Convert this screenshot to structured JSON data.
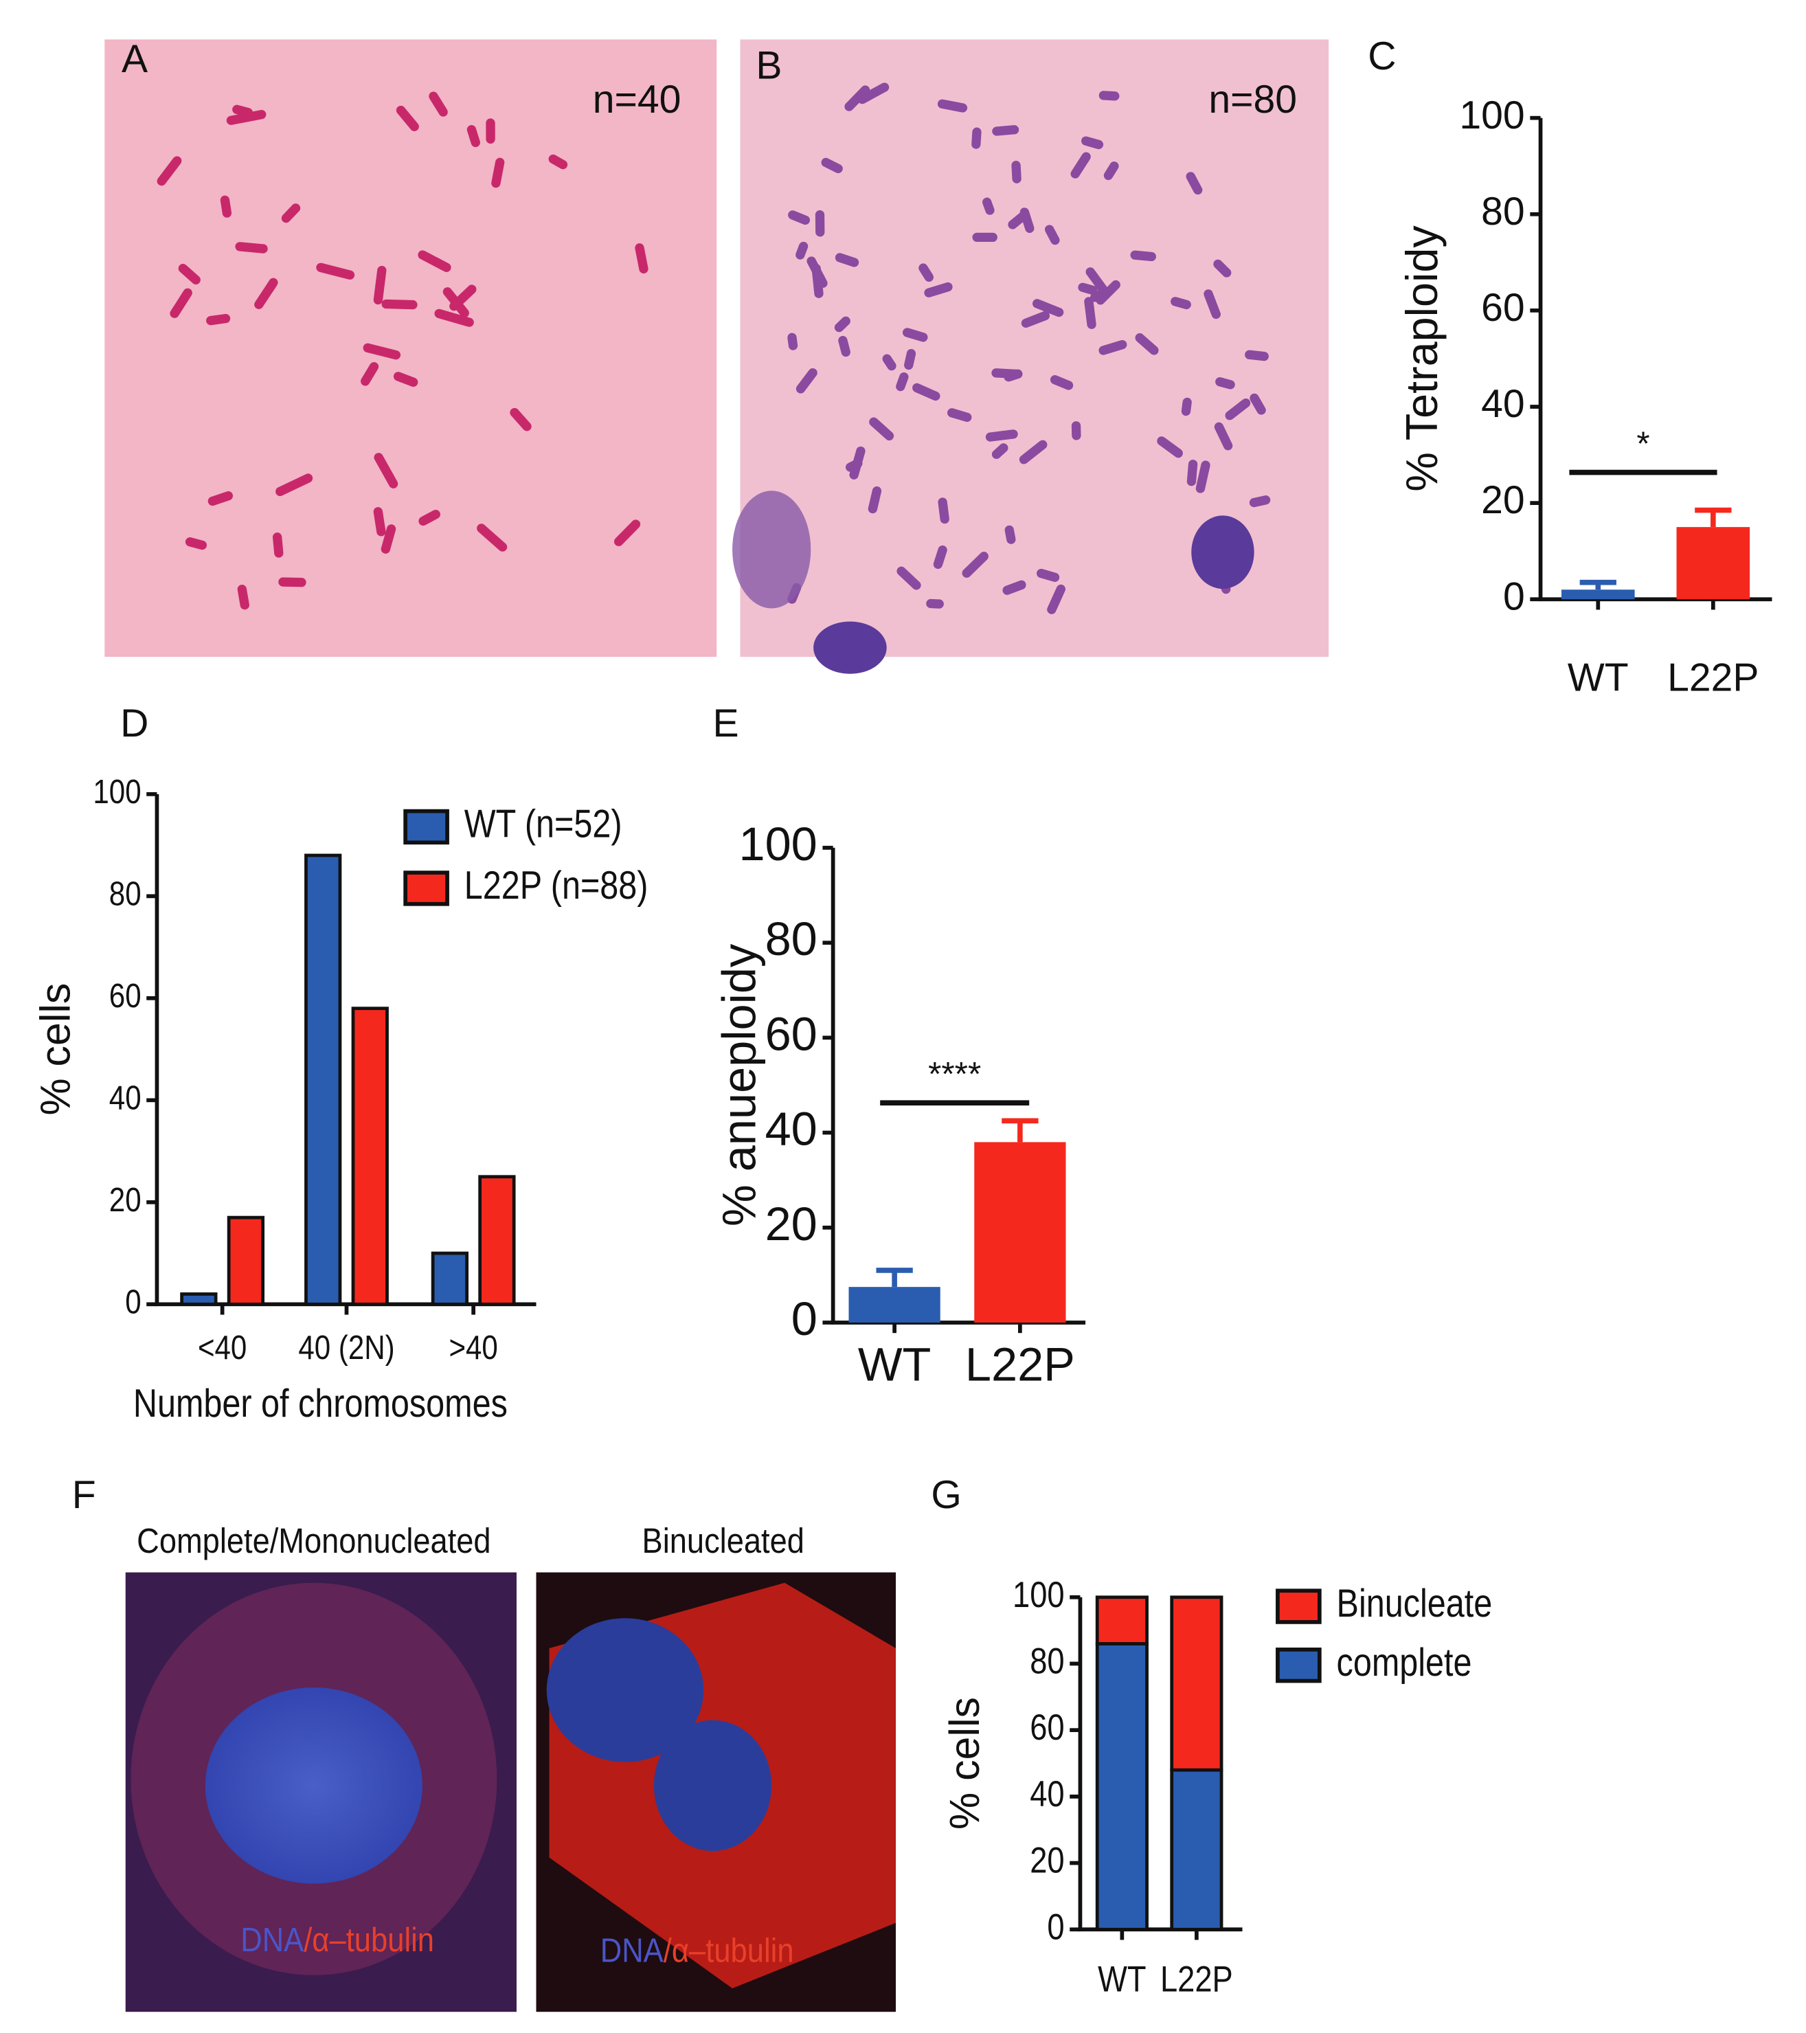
{
  "panels": {
    "A": {
      "label": "A",
      "annotation": "n=40"
    },
    "B": {
      "label": "B",
      "annotation": "n=80"
    },
    "F": {
      "label": "F",
      "left_title": "Complete/Mononucleated",
      "right_title": "Binucleated",
      "stain_dna": "DNA",
      "stain_tubulin": "/α–tubulin"
    }
  },
  "chart_data": [
    {
      "type": "bar",
      "panel": "C",
      "ylabel": "% Tetraploidy",
      "categories": [
        "WT",
        "L22P"
      ],
      "values": [
        2,
        15
      ],
      "errors": [
        1.5,
        3.5
      ],
      "colors": [
        "#2a5db0",
        "#f5281e"
      ],
      "ylim": [
        0,
        100
      ],
      "yticks": [
        0,
        20,
        40,
        60,
        80,
        100
      ],
      "significance": "*"
    },
    {
      "type": "grouped_bar",
      "panel": "D",
      "ylabel": "% cells",
      "xlabel": "Number of chromosomes",
      "categories": [
        "<40",
        "40 (2N)",
        ">40"
      ],
      "series": [
        {
          "name": "WT (n=52)",
          "color": "#2a5db0",
          "values": [
            2,
            88,
            10
          ]
        },
        {
          "name": "L22P (n=88)",
          "color": "#f5281e",
          "values": [
            17,
            58,
            25
          ]
        }
      ],
      "ylim": [
        0,
        100
      ],
      "yticks": [
        0,
        20,
        40,
        60,
        80,
        100
      ]
    },
    {
      "type": "bar",
      "panel": "E",
      "ylabel": "% anueploidy",
      "categories": [
        "WT",
        "L22P"
      ],
      "values": [
        7.5,
        38
      ],
      "errors": [
        3.5,
        4.5
      ],
      "colors": [
        "#2a5db0",
        "#f5281e"
      ],
      "ylim": [
        0,
        100
      ],
      "yticks": [
        0,
        20,
        40,
        60,
        80,
        100
      ],
      "significance": "****"
    },
    {
      "type": "stacked_bar",
      "panel": "G",
      "ylabel": "% cells",
      "categories": [
        "WT",
        "L22P"
      ],
      "series": [
        {
          "name": "complete",
          "color": "#2a5db0",
          "values": [
            86,
            48
          ]
        },
        {
          "name": "Binucleate",
          "color": "#f5281e",
          "values": [
            14,
            52
          ]
        }
      ],
      "ylim": [
        0,
        100
      ],
      "yticks": [
        0,
        20,
        40,
        60,
        80,
        100
      ]
    }
  ]
}
